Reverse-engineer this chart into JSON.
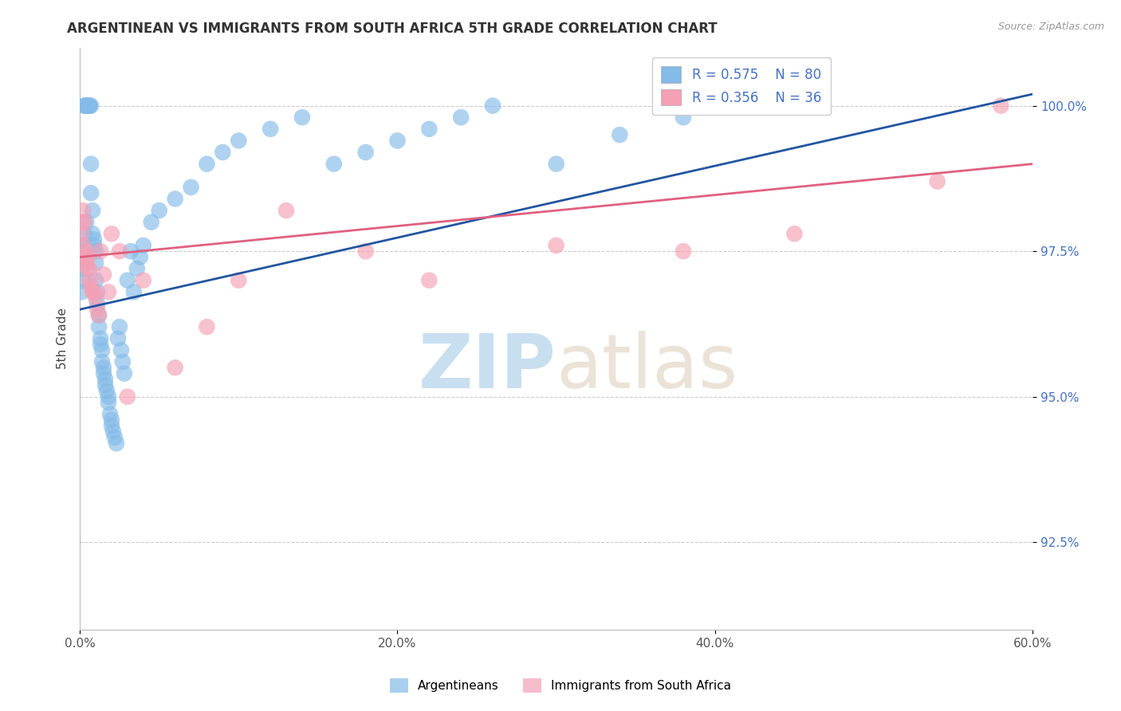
{
  "title": "ARGENTINEAN VS IMMIGRANTS FROM SOUTH AFRICA 5TH GRADE CORRELATION CHART",
  "source": "Source: ZipAtlas.com",
  "ylabel": "5th Grade",
  "xlim": [
    0.0,
    0.6
  ],
  "ylim": [
    0.91,
    1.01
  ],
  "xtick_labels": [
    "0.0%",
    "20.0%",
    "40.0%",
    "60.0%"
  ],
  "xtick_values": [
    0.0,
    0.2,
    0.4,
    0.6
  ],
  "ytick_labels": [
    "92.5%",
    "95.0%",
    "97.5%",
    "100.0%"
  ],
  "ytick_values": [
    0.925,
    0.95,
    0.975,
    1.0
  ],
  "legend1_R": "0.575",
  "legend1_N": "80",
  "legend2_R": "0.356",
  "legend2_N": "36",
  "legend_label1": "Argentineans",
  "legend_label2": "Immigrants from South Africa",
  "blue_color": "#85BBE8",
  "pink_color": "#F4A0B5",
  "blue_line_color": "#2255A0",
  "pink_line_color": "#E06080",
  "watermark_zip": "ZIP",
  "watermark_atlas": "atlas",
  "watermark_color": "#C8DFF0",
  "blue_points_x": [
    0.001,
    0.001,
    0.001,
    0.002,
    0.002,
    0.002,
    0.003,
    0.003,
    0.003,
    0.003,
    0.004,
    0.004,
    0.004,
    0.005,
    0.005,
    0.005,
    0.006,
    0.006,
    0.006,
    0.007,
    0.007,
    0.007,
    0.008,
    0.008,
    0.009,
    0.009,
    0.01,
    0.01,
    0.01,
    0.011,
    0.011,
    0.012,
    0.012,
    0.013,
    0.013,
    0.014,
    0.014,
    0.015,
    0.015,
    0.016,
    0.016,
    0.017,
    0.018,
    0.018,
    0.019,
    0.02,
    0.02,
    0.021,
    0.022,
    0.023,
    0.024,
    0.025,
    0.026,
    0.027,
    0.028,
    0.03,
    0.032,
    0.034,
    0.036,
    0.038,
    0.04,
    0.045,
    0.05,
    0.06,
    0.07,
    0.08,
    0.09,
    0.1,
    0.12,
    0.14,
    0.16,
    0.18,
    0.2,
    0.22,
    0.24,
    0.26,
    0.3,
    0.34,
    0.38,
    0.42
  ],
  "blue_points_y": [
    0.968,
    0.972,
    0.975,
    0.97,
    0.974,
    0.976,
    0.975,
    0.978,
    1.0,
    1.0,
    0.98,
    1.0,
    1.0,
    1.0,
    1.0,
    1.0,
    1.0,
    1.0,
    1.0,
    1.0,
    0.99,
    0.985,
    0.982,
    0.978,
    0.977,
    0.976,
    0.975,
    0.973,
    0.97,
    0.968,
    0.966,
    0.964,
    0.962,
    0.96,
    0.959,
    0.958,
    0.956,
    0.955,
    0.954,
    0.953,
    0.952,
    0.951,
    0.95,
    0.949,
    0.947,
    0.946,
    0.945,
    0.944,
    0.943,
    0.942,
    0.96,
    0.962,
    0.958,
    0.956,
    0.954,
    0.97,
    0.975,
    0.968,
    0.972,
    0.974,
    0.976,
    0.98,
    0.982,
    0.984,
    0.986,
    0.99,
    0.992,
    0.994,
    0.996,
    0.998,
    0.99,
    0.992,
    0.994,
    0.996,
    0.998,
    1.0,
    0.99,
    0.995,
    0.998,
    1.0
  ],
  "pink_points_x": [
    0.001,
    0.001,
    0.002,
    0.002,
    0.003,
    0.003,
    0.004,
    0.004,
    0.005,
    0.005,
    0.006,
    0.006,
    0.007,
    0.008,
    0.009,
    0.01,
    0.011,
    0.012,
    0.013,
    0.015,
    0.018,
    0.02,
    0.025,
    0.03,
    0.04,
    0.06,
    0.08,
    0.1,
    0.13,
    0.18,
    0.22,
    0.3,
    0.38,
    0.45,
    0.54,
    0.58
  ],
  "pink_points_y": [
    0.978,
    0.98,
    0.976,
    0.982,
    0.974,
    0.98,
    0.973,
    0.975,
    0.972,
    0.974,
    0.97,
    0.972,
    0.969,
    0.968,
    0.968,
    0.967,
    0.965,
    0.964,
    0.975,
    0.971,
    0.968,
    0.978,
    0.975,
    0.95,
    0.97,
    0.955,
    0.962,
    0.97,
    0.982,
    0.975,
    0.97,
    0.976,
    0.975,
    0.978,
    0.987,
    1.0
  ]
}
